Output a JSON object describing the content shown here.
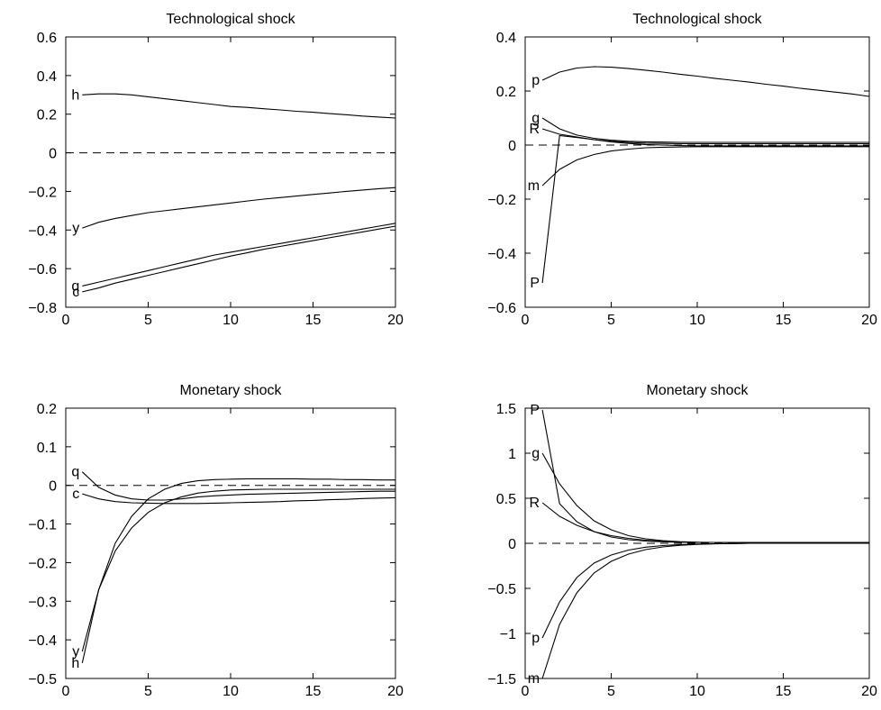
{
  "chart_data": [
    {
      "type": "line",
      "title": "Technological shock",
      "xlim": [
        0,
        20
      ],
      "ylim": [
        -0.8,
        0.6
      ],
      "xticks": [
        0,
        5,
        10,
        15,
        20
      ],
      "yticks": [
        -0.8,
        -0.6,
        -0.4,
        -0.2,
        0,
        0.2,
        0.4,
        0.6
      ],
      "xtick_labels": [
        "0",
        "5",
        "10",
        "15",
        "20"
      ],
      "ytick_labels": [
        "−0.8",
        "−0.6",
        "−0.4",
        "−0.2",
        "0",
        "0.2",
        "0.4",
        "0.6"
      ],
      "zero_line": true,
      "grid": false,
      "x": [
        1,
        2,
        3,
        4,
        5,
        6,
        7,
        8,
        9,
        10,
        11,
        12,
        13,
        14,
        15,
        16,
        17,
        18,
        19,
        20
      ],
      "series": [
        {
          "name": "h",
          "values": [
            0.3,
            0.305,
            0.305,
            0.3,
            0.29,
            0.28,
            0.27,
            0.26,
            0.25,
            0.24,
            0.235,
            0.228,
            0.222,
            0.215,
            0.21,
            0.203,
            0.197,
            0.19,
            0.185,
            0.18
          ]
        },
        {
          "name": "y",
          "values": [
            -0.39,
            -0.36,
            -0.34,
            -0.325,
            -0.31,
            -0.3,
            -0.29,
            -0.28,
            -0.27,
            -0.26,
            -0.25,
            -0.24,
            -0.232,
            -0.224,
            -0.216,
            -0.208,
            -0.2,
            -0.193,
            -0.186,
            -0.18
          ]
        },
        {
          "name": "q",
          "values": [
            -0.69,
            -0.67,
            -0.65,
            -0.63,
            -0.61,
            -0.59,
            -0.57,
            -0.55,
            -0.53,
            -0.515,
            -0.5,
            -0.485,
            -0.47,
            -0.455,
            -0.44,
            -0.425,
            -0.41,
            -0.395,
            -0.38,
            -0.365
          ]
        },
        {
          "name": "c",
          "values": [
            -0.72,
            -0.7,
            -0.675,
            -0.655,
            -0.635,
            -0.615,
            -0.595,
            -0.575,
            -0.555,
            -0.535,
            -0.518,
            -0.5,
            -0.485,
            -0.47,
            -0.455,
            -0.44,
            -0.425,
            -0.41,
            -0.395,
            -0.38
          ]
        }
      ]
    },
    {
      "type": "line",
      "title": "Technological shock",
      "xlim": [
        0,
        20
      ],
      "ylim": [
        -0.6,
        0.4
      ],
      "xticks": [
        0,
        5,
        10,
        15,
        20
      ],
      "yticks": [
        -0.6,
        -0.4,
        -0.2,
        0,
        0.2,
        0.4
      ],
      "xtick_labels": [
        "0",
        "5",
        "10",
        "15",
        "20"
      ],
      "ytick_labels": [
        "−0.6",
        "−0.4",
        "−0.2",
        "0",
        "0.2",
        "0.4"
      ],
      "zero_line": true,
      "grid": false,
      "x": [
        1,
        2,
        3,
        4,
        5,
        6,
        7,
        8,
        9,
        10,
        11,
        12,
        13,
        14,
        15,
        16,
        17,
        18,
        19,
        20
      ],
      "series": [
        {
          "name": "p",
          "values": [
            0.24,
            0.27,
            0.285,
            0.29,
            0.288,
            0.283,
            0.277,
            0.27,
            0.262,
            0.255,
            0.247,
            0.24,
            0.233,
            0.225,
            0.218,
            0.21,
            0.203,
            0.196,
            0.189,
            0.18
          ]
        },
        {
          "name": "g",
          "values": [
            0.1,
            0.06,
            0.037,
            0.025,
            0.018,
            0.014,
            0.012,
            0.011,
            0.01,
            0.01,
            0.01,
            0.01,
            0.01,
            0.01,
            0.01,
            0.01,
            0.01,
            0.01,
            0.01,
            0.01
          ]
        },
        {
          "name": "R",
          "values": [
            0.06,
            0.04,
            0.03,
            0.02,
            0.014,
            0.01,
            0.007,
            0.006,
            0.005,
            0.005,
            0.005,
            0.005,
            0.005,
            0.005,
            0.005,
            0.005,
            0.005,
            0.005,
            0.005,
            0.005
          ]
        },
        {
          "name": "m",
          "values": [
            -0.15,
            -0.09,
            -0.055,
            -0.035,
            -0.022,
            -0.015,
            -0.01,
            -0.008,
            -0.007,
            -0.006,
            -0.006,
            -0.006,
            -0.006,
            -0.006,
            -0.006,
            -0.006,
            -0.006,
            -0.006,
            -0.006,
            -0.006
          ]
        },
        {
          "name": "P",
          "values": [
            -0.51,
            0.035,
            0.028,
            0.02,
            0.012,
            0.006,
            0.002,
            0.0,
            -0.002,
            -0.003,
            -0.003,
            -0.003,
            -0.003,
            -0.003,
            -0.003,
            -0.003,
            -0.003,
            -0.003,
            -0.003,
            -0.003
          ]
        }
      ]
    },
    {
      "type": "line",
      "title": "Monetary shock",
      "xlim": [
        0,
        20
      ],
      "ylim": [
        -0.5,
        0.2
      ],
      "xticks": [
        0,
        5,
        10,
        15,
        20
      ],
      "yticks": [
        -0.5,
        -0.4,
        -0.3,
        -0.2,
        -0.1,
        0,
        0.1,
        0.2
      ],
      "xtick_labels": [
        "0",
        "5",
        "10",
        "15",
        "20"
      ],
      "ytick_labels": [
        "−0.5",
        "−0.4",
        "−0.3",
        "−0.2",
        "−0.1",
        "0",
        "0.1",
        "0.2"
      ],
      "zero_line": true,
      "grid": false,
      "x": [
        1,
        2,
        3,
        4,
        5,
        6,
        7,
        8,
        9,
        10,
        11,
        12,
        13,
        14,
        15,
        16,
        17,
        18,
        19,
        20
      ],
      "series": [
        {
          "name": "q",
          "values": [
            0.035,
            -0.005,
            -0.025,
            -0.035,
            -0.038,
            -0.038,
            -0.035,
            -0.03,
            -0.027,
            -0.025,
            -0.023,
            -0.022,
            -0.021,
            -0.02,
            -0.019,
            -0.018,
            -0.017,
            -0.016,
            -0.015,
            -0.015
          ]
        },
        {
          "name": "c",
          "values": [
            -0.022,
            -0.035,
            -0.042,
            -0.045,
            -0.046,
            -0.047,
            -0.047,
            -0.047,
            -0.046,
            -0.045,
            -0.044,
            -0.043,
            -0.042,
            -0.04,
            -0.039,
            -0.037,
            -0.036,
            -0.034,
            -0.033,
            -0.032
          ]
        },
        {
          "name": "y",
          "values": [
            -0.43,
            -0.27,
            -0.17,
            -0.11,
            -0.07,
            -0.045,
            -0.03,
            -0.02,
            -0.015,
            -0.012,
            -0.011,
            -0.01,
            -0.01,
            -0.01,
            -0.01,
            -0.01,
            -0.01,
            -0.01,
            -0.01,
            -0.01
          ]
        },
        {
          "name": "h",
          "values": [
            -0.46,
            -0.27,
            -0.15,
            -0.08,
            -0.035,
            -0.01,
            0.005,
            0.012,
            0.015,
            0.016,
            0.017,
            0.017,
            0.017,
            0.017,
            0.016,
            0.016,
            0.015,
            0.015,
            0.014,
            0.014
          ]
        }
      ]
    },
    {
      "type": "line",
      "title": "Monetary shock",
      "xlim": [
        0,
        20
      ],
      "ylim": [
        -1.5,
        1.5
      ],
      "xticks": [
        0,
        5,
        10,
        15,
        20
      ],
      "yticks": [
        -1.5,
        -1,
        -0.5,
        0,
        0.5,
        1,
        1.5
      ],
      "xtick_labels": [
        "0",
        "5",
        "10",
        "15",
        "20"
      ],
      "ytick_labels": [
        "−1.5",
        "−1",
        "−0.5",
        "0",
        "0.5",
        "1",
        "1.5"
      ],
      "zero_line": true,
      "grid": false,
      "x": [
        1,
        2,
        3,
        4,
        5,
        6,
        7,
        8,
        9,
        10,
        11,
        12,
        13,
        14,
        15,
        16,
        17,
        18,
        19,
        20
      ],
      "series": [
        {
          "name": "P",
          "values": [
            1.48,
            0.44,
            0.24,
            0.13,
            0.07,
            0.04,
            0.025,
            0.017,
            0.012,
            0.01,
            0.01,
            0.01,
            0.01,
            0.01,
            0.01,
            0.01,
            0.01,
            0.01,
            0.01,
            0.01
          ]
        },
        {
          "name": "g",
          "values": [
            1.0,
            0.66,
            0.42,
            0.25,
            0.15,
            0.085,
            0.05,
            0.03,
            0.018,
            0.012,
            0.01,
            0.01,
            0.01,
            0.01,
            0.01,
            0.01,
            0.01,
            0.01,
            0.01,
            0.01
          ]
        },
        {
          "name": "R",
          "values": [
            0.45,
            0.3,
            0.2,
            0.13,
            0.085,
            0.055,
            0.035,
            0.022,
            0.015,
            0.01,
            0.01,
            0.01,
            0.01,
            0.01,
            0.01,
            0.01,
            0.01,
            0.01,
            0.01,
            0.01
          ]
        },
        {
          "name": "p",
          "values": [
            -1.05,
            -0.65,
            -0.38,
            -0.22,
            -0.13,
            -0.075,
            -0.043,
            -0.025,
            -0.014,
            -0.008,
            -0.005,
            -0.003,
            0.0,
            0.0,
            0.0,
            0.0,
            0.0,
            0.0,
            0.0,
            0.0
          ]
        },
        {
          "name": "m",
          "values": [
            -1.5,
            -0.9,
            -0.55,
            -0.33,
            -0.2,
            -0.12,
            -0.07,
            -0.04,
            -0.022,
            -0.012,
            -0.006,
            -0.003,
            0.0,
            0.0,
            0.0,
            0.0,
            0.0,
            0.0,
            0.0,
            0.0
          ]
        }
      ]
    }
  ]
}
